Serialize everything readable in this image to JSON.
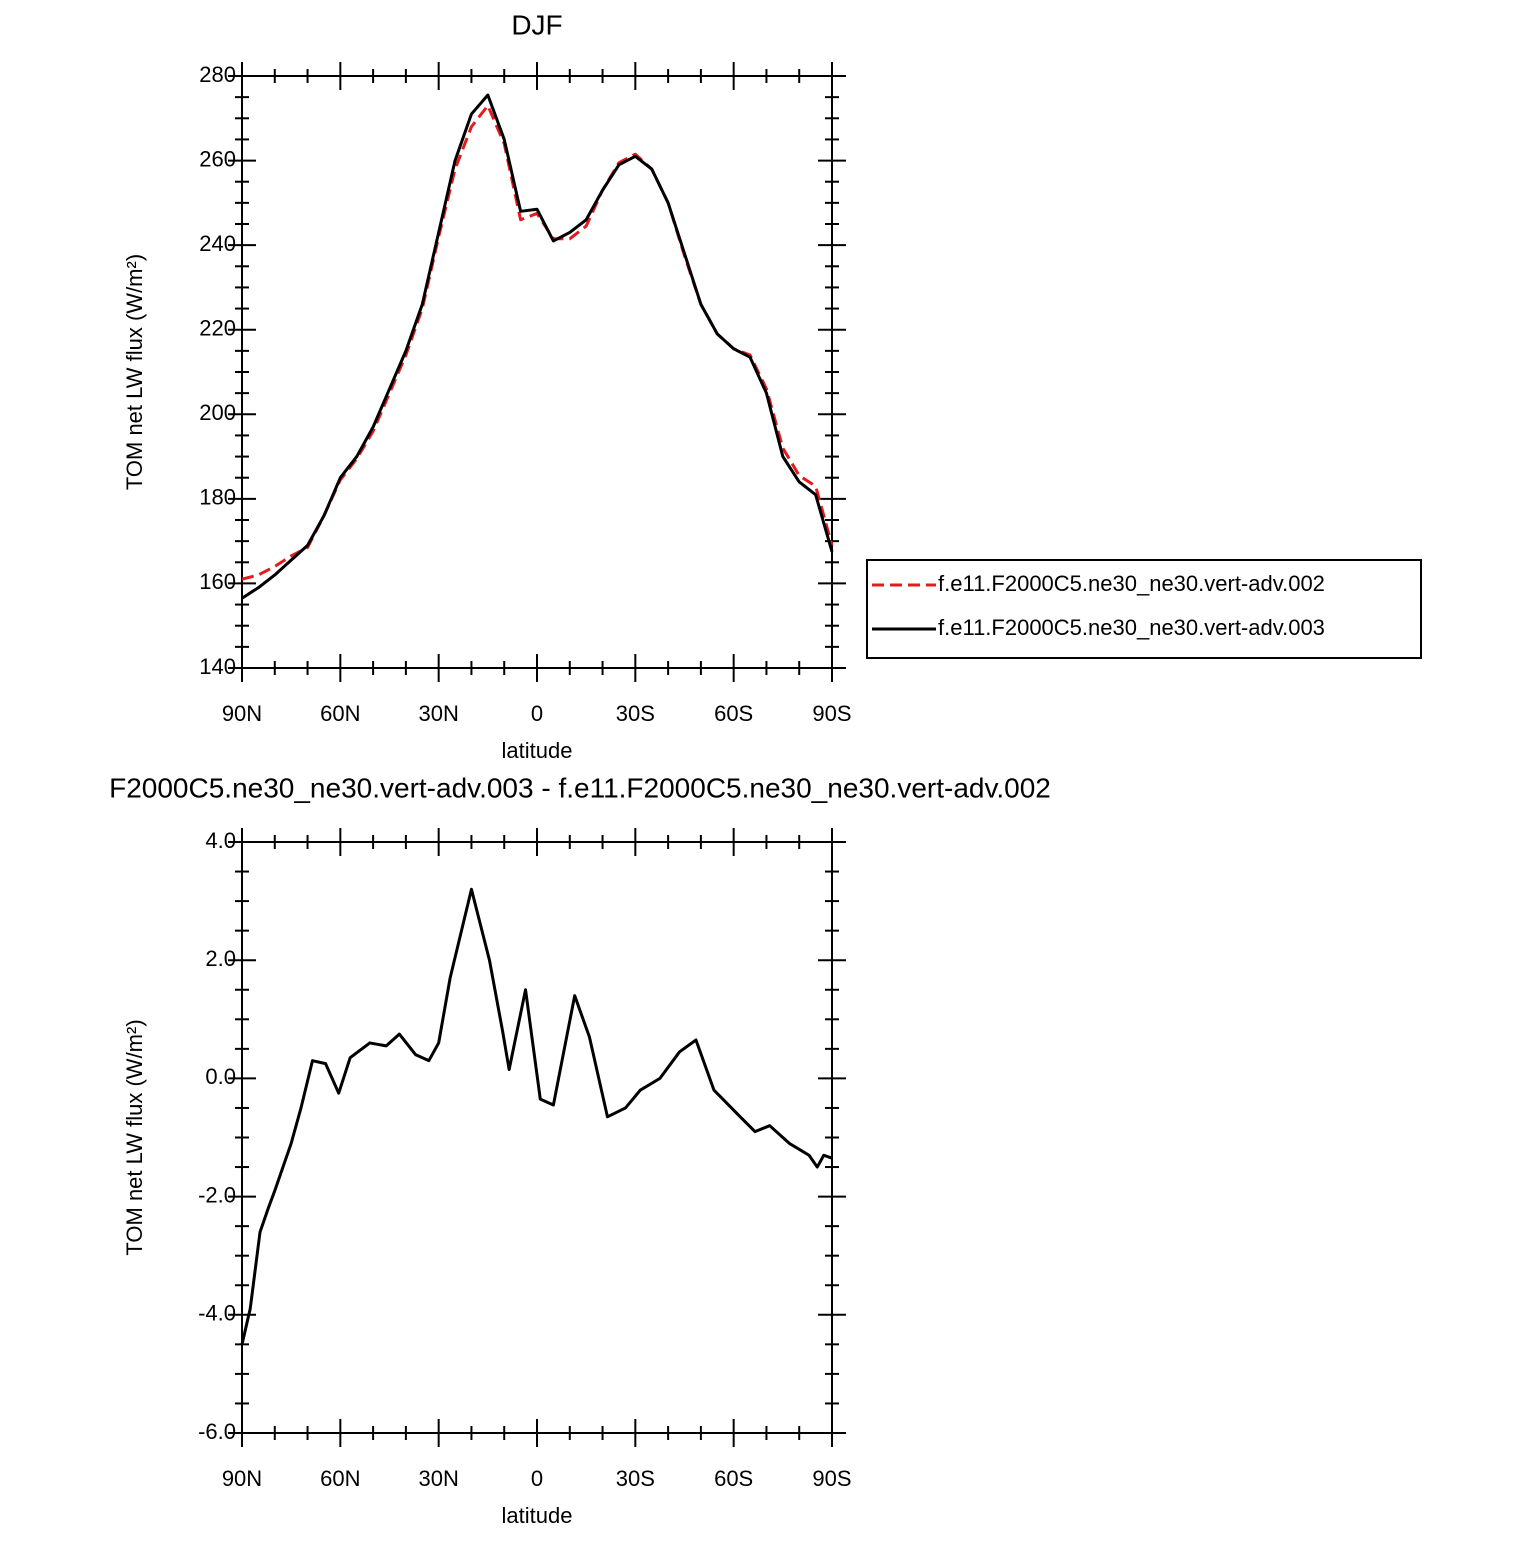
{
  "chart_data": [
    {
      "type": "line",
      "title": "DJF",
      "x_label": "latitude",
      "y_label": "TOM net LW flux (W/m²)",
      "xlim": [
        90,
        -90
      ],
      "ylim": [
        140,
        280
      ],
      "xticks": [
        {
          "value": 90,
          "label": "90N"
        },
        {
          "value": 60,
          "label": "60N"
        },
        {
          "value": 30,
          "label": "30N"
        },
        0,
        {
          "value": -30,
          "label": "30S"
        },
        {
          "value": -60,
          "label": "60S"
        },
        {
          "value": -90,
          "label": "90S"
        }
      ],
      "yticks": [
        140,
        160,
        180,
        200,
        220,
        240,
        260,
        280
      ],
      "xminorticks": [
        80,
        70,
        50,
        40,
        20,
        10,
        -10,
        -20,
        -40,
        -50,
        -70,
        -80
      ],
      "yminorticks": [
        145,
        150,
        155,
        165,
        170,
        175,
        185,
        190,
        195,
        205,
        210,
        215,
        225,
        230,
        235,
        245,
        250,
        255,
        265,
        270,
        275
      ],
      "legend": "right",
      "x": [
        90,
        85,
        80,
        75,
        70,
        65,
        60,
        55,
        50,
        45,
        40,
        35,
        30,
        25,
        20,
        15,
        10,
        5,
        0,
        -5,
        -10,
        -15,
        -20,
        -25,
        -30,
        -35,
        -40,
        -45,
        -50,
        -55,
        -60,
        -65,
        -70,
        -75,
        -80,
        -85,
        -90
      ],
      "series": [
        {
          "name": "f.e11.F2000C5.ne30_ne30.vert-adv.002",
          "color": "#e41a1c",
          "linestyle": "dashed",
          "values": [
            161,
            162,
            164,
            166.5,
            168.5,
            176,
            184.5,
            189.5,
            196,
            205,
            214,
            225,
            242,
            258,
            268,
            273,
            264,
            246,
            247.5,
            241.5,
            241.5,
            244.5,
            253,
            259.5,
            261.5,
            258,
            250,
            237.5,
            226,
            219,
            215.5,
            214,
            206,
            192,
            185.5,
            183,
            169
          ]
        },
        {
          "name": "f.e11.F2000C5.ne30_ne30.vert-adv.003",
          "color": "#000000",
          "linestyle": "solid",
          "values": [
            156.5,
            159,
            162,
            165.5,
            169,
            176,
            185,
            190,
            197,
            206,
            215,
            226,
            243,
            260,
            271,
            275.5,
            265,
            248,
            248.5,
            241,
            243,
            246,
            253,
            259,
            261,
            258,
            250,
            238,
            226,
            219,
            215.5,
            213.5,
            205,
            190,
            184,
            181,
            167.5
          ]
        }
      ]
    },
    {
      "type": "line",
      "title": "F2000C5.ne30_ne30.vert-adv.003 - f.e11.F2000C5.ne30_ne30.vert-adv.002",
      "x_label": "latitude",
      "y_label": "TOM net LW flux (W/m²)",
      "xlim": [
        90,
        -90
      ],
      "ylim": [
        -6,
        4
      ],
      "xticks": [
        {
          "value": 90,
          "label": "90N"
        },
        {
          "value": 60,
          "label": "60N"
        },
        {
          "value": 30,
          "label": "30N"
        },
        0,
        {
          "value": -30,
          "label": "30S"
        },
        {
          "value": -60,
          "label": "60S"
        },
        {
          "value": -90,
          "label": "90S"
        }
      ],
      "yticks": [
        {
          "value": 4,
          "label": "4.0"
        },
        {
          "value": 2,
          "label": "2.0"
        },
        {
          "value": 0,
          "label": "0.0"
        },
        {
          "value": -2,
          "label": "-2.0"
        },
        {
          "value": -4,
          "label": "-4.0"
        },
        {
          "value": -6,
          "label": "-6.0"
        }
      ],
      "xminorticks": [
        80,
        70,
        50,
        40,
        20,
        10,
        -10,
        -20,
        -40,
        -50,
        -70,
        -80
      ],
      "yminorticks": [
        3.5,
        3,
        2.5,
        1.5,
        1,
        0.5,
        -0.5,
        -1,
        -1.5,
        -2.5,
        -3,
        -3.5,
        -4.5,
        -5,
        -5.5
      ],
      "color": "#000000",
      "x": [
        90,
        87.5,
        84.5,
        82,
        80,
        75,
        72,
        68.5,
        64.5,
        60.5,
        57,
        51,
        46,
        42,
        37,
        33,
        30,
        26.5,
        20,
        14.5,
        10.5,
        8.5,
        3.5,
        -1,
        -5,
        -11.5,
        -16,
        -21.5,
        -27,
        -31.5,
        -37.5,
        -43.5,
        -48.5,
        -54,
        -62,
        -66.5,
        -71,
        -77,
        -83,
        -85.5,
        -87.5,
        -90
      ],
      "values": [
        -4.5,
        -3.9,
        -2.6,
        -2.2,
        -1.9,
        -1.1,
        -0.5,
        0.3,
        0.25,
        -0.25,
        0.35,
        0.6,
        0.55,
        0.75,
        0.4,
        0.3,
        0.6,
        1.7,
        3.2,
        2.0,
        0.8,
        0.15,
        1.5,
        -0.35,
        -0.45,
        1.4,
        0.7,
        -0.65,
        -0.5,
        -0.2,
        0.0,
        0.45,
        0.65,
        -0.2,
        -0.65,
        -0.9,
        -0.8,
        -1.1,
        -1.3,
        -1.5,
        -1.3,
        -1.35
      ]
    }
  ]
}
